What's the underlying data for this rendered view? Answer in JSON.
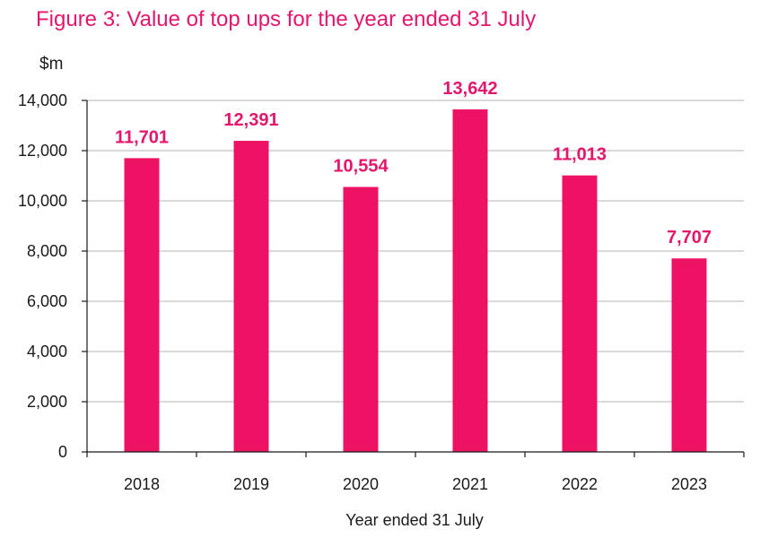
{
  "chart_data": {
    "type": "bar",
    "title": "Figure 3: Value of top ups for the year ended 31 July",
    "unit_label": "$m",
    "xlabel": "Year ended 31 July",
    "ylabel": "",
    "categories": [
      "2018",
      "2019",
      "2020",
      "2021",
      "2022",
      "2023"
    ],
    "values": [
      11701,
      12391,
      10554,
      13642,
      11013,
      7707
    ],
    "value_labels": [
      "11,701",
      "12,391",
      "10,554",
      "13,642",
      "11,013",
      "7,707"
    ],
    "ylim": [
      0,
      14000
    ],
    "yticks": [
      0,
      2000,
      4000,
      6000,
      8000,
      10000,
      12000,
      14000
    ],
    "ytick_labels": [
      "0",
      "2,000",
      "4,000",
      "6,000",
      "8,000",
      "10,000",
      "12,000",
      "14,000"
    ],
    "grid": true,
    "legend": "none",
    "colors": {
      "bar": "#ee1264",
      "data_label": "#e4166b",
      "title": "#e4166b",
      "grid": "#b3b3b3",
      "axis": "#1a1a1a"
    }
  }
}
